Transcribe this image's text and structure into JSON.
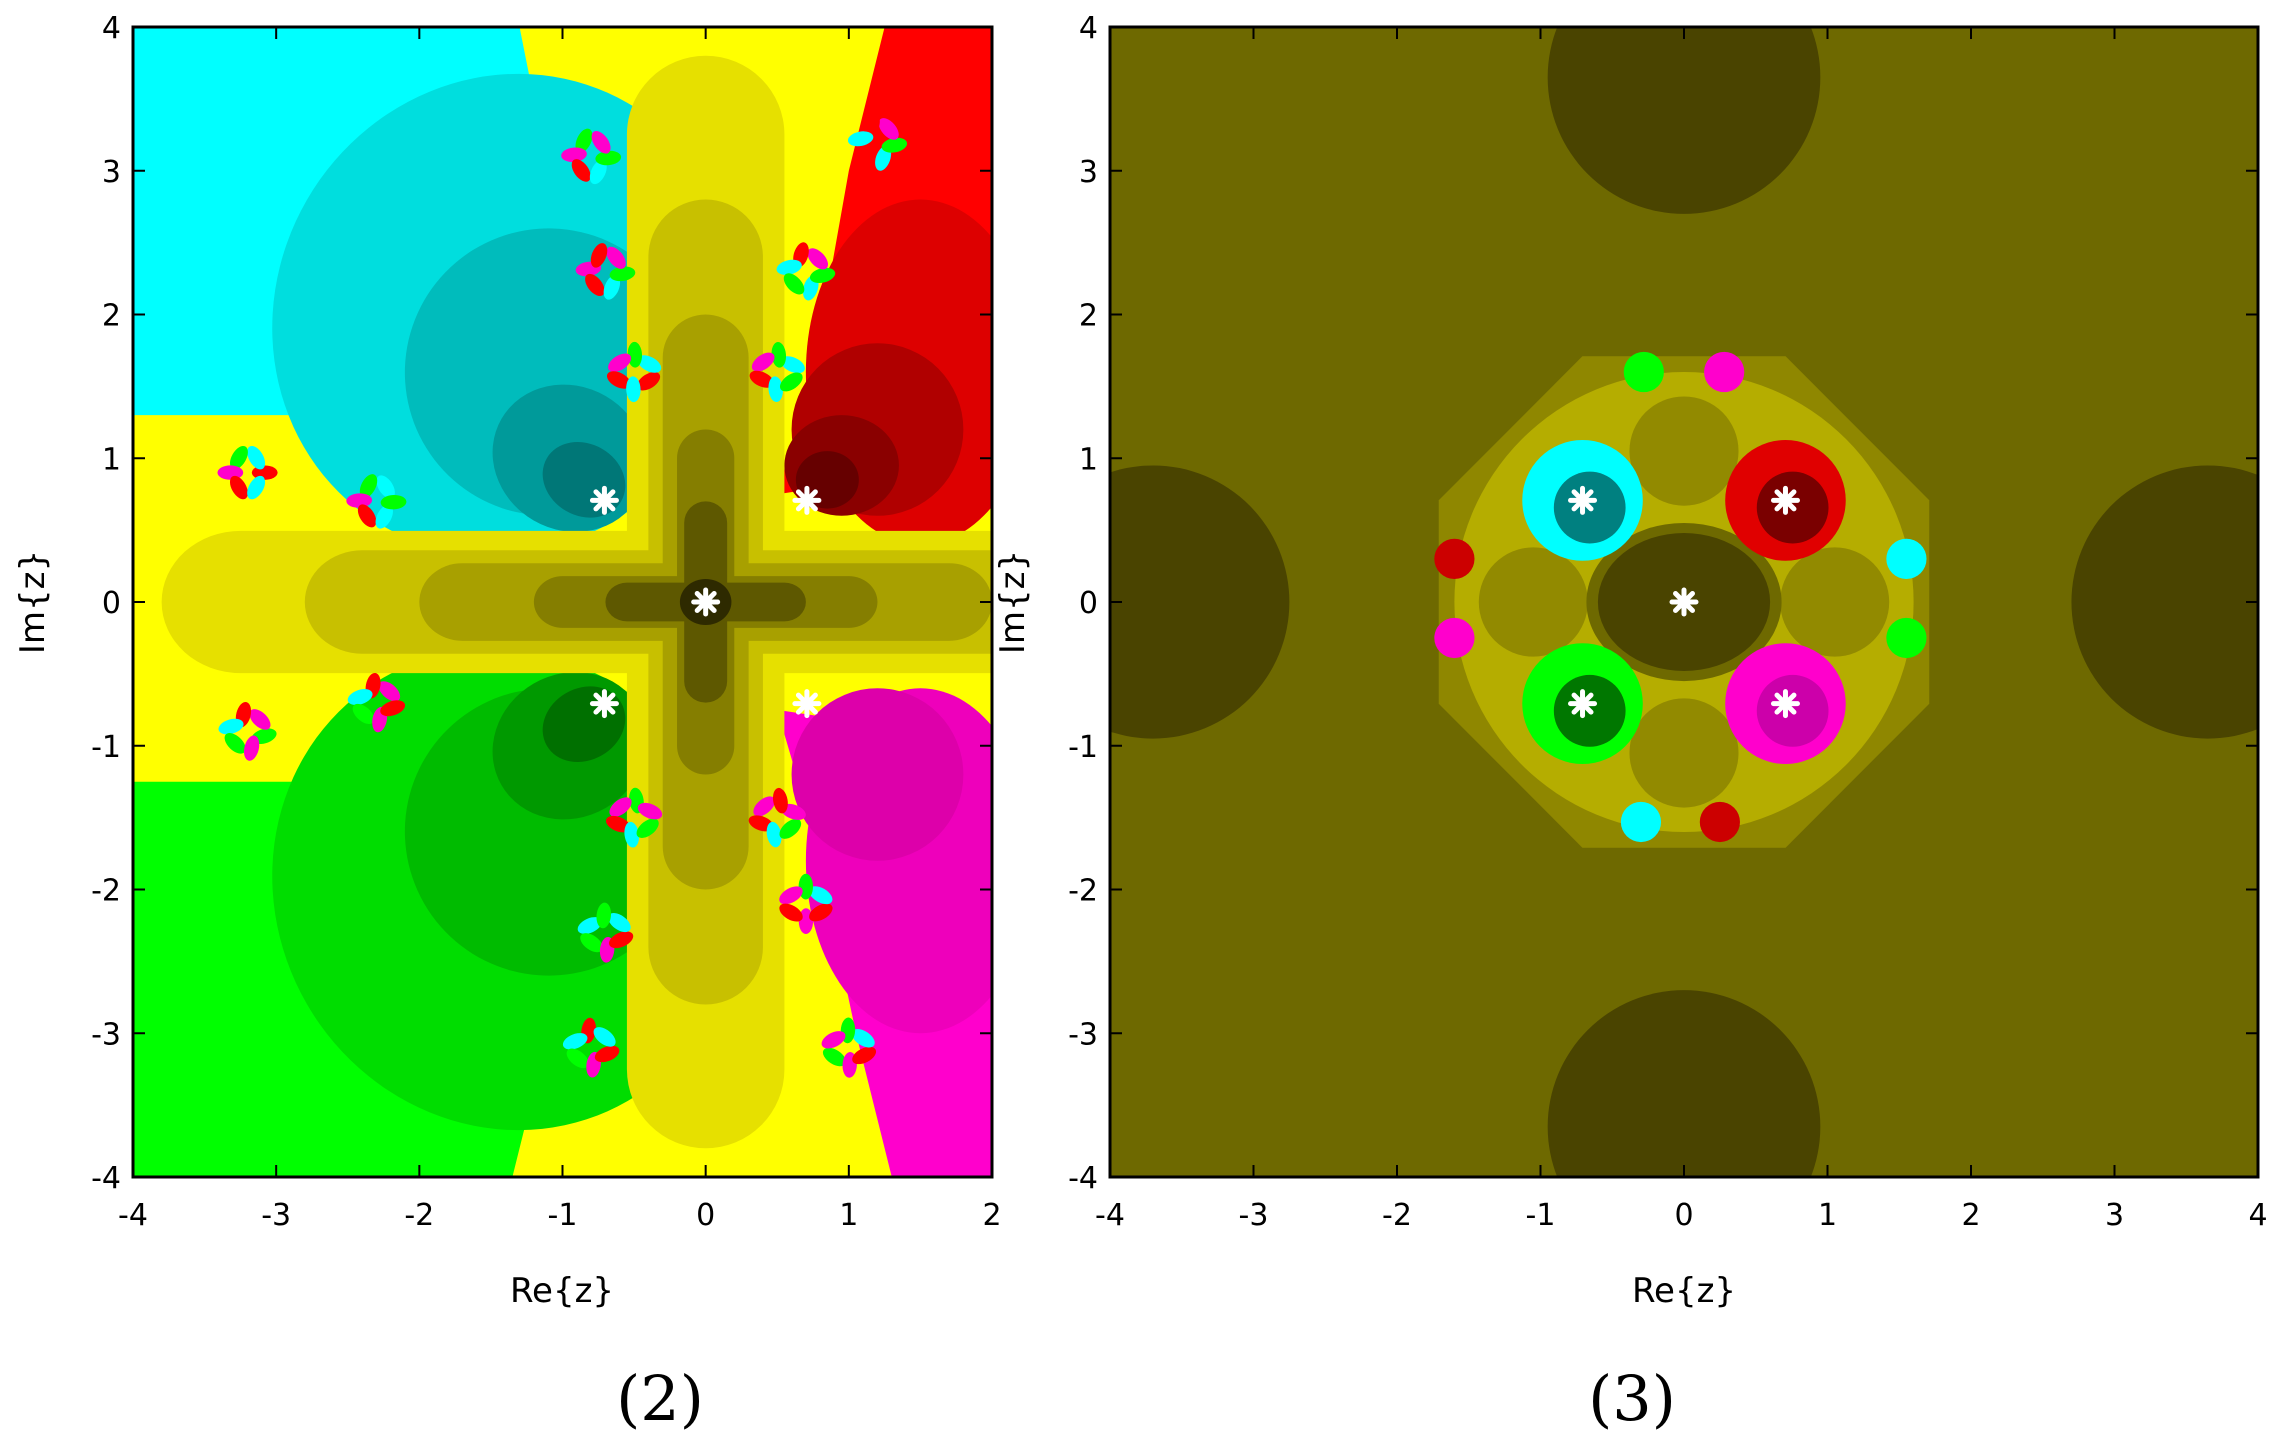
{
  "chart_data": [
    {
      "type": "heatmap",
      "panel_label": "(2)",
      "xlabel": "Re{z}",
      "ylabel": "Im{z}",
      "xlim": [
        -4,
        2
      ],
      "ylim": [
        -4,
        4
      ],
      "xticks": [
        -4,
        -3,
        -2,
        -1,
        0,
        1,
        2
      ],
      "xtick_labels": [
        "-4",
        "-3",
        "-2",
        "-1",
        "0",
        "1",
        "2"
      ],
      "yticks": [
        -4,
        -3,
        -2,
        -1,
        0,
        1,
        2,
        3,
        4
      ],
      "ytick_labels": [
        "-4",
        "-3",
        "-2",
        "-1",
        "0",
        "1",
        "2",
        "3",
        "4"
      ],
      "roots": [
        {
          "x": 0,
          "y": 0,
          "color": "#5a5300"
        },
        {
          "x": 0.7071,
          "y": 0.7071,
          "color": "#ff0000"
        },
        {
          "x": -0.7071,
          "y": 0.7071,
          "color": "#00ffff"
        },
        {
          "x": -0.7071,
          "y": -0.7071,
          "color": "#00ff00"
        },
        {
          "x": 0.7071,
          "y": -0.7071,
          "color": "#ff00cc"
        }
      ],
      "attractor": "yellow",
      "colors": {
        "yellow": "#ffff00",
        "olive": "#6e6900",
        "red": "#ff0000",
        "cyan": "#00ffff",
        "green": "#00ff00",
        "magenta": "#ff00cc"
      }
    },
    {
      "type": "heatmap",
      "panel_label": "(3)",
      "xlabel": "Re{z}",
      "ylabel": "Im{z}",
      "xlim": [
        -4,
        4
      ],
      "ylim": [
        -4,
        4
      ],
      "xticks": [
        -4,
        -3,
        -2,
        -1,
        0,
        1,
        2,
        3,
        4
      ],
      "xtick_labels": [
        "-4",
        "-3",
        "-2",
        "-1",
        "0",
        "1",
        "2",
        "3",
        "4"
      ],
      "yticks": [
        -4,
        -3,
        -2,
        -1,
        0,
        1,
        2,
        3,
        4
      ],
      "ytick_labels": [
        "-4",
        "-3",
        "-2",
        "-1",
        "0",
        "1",
        "2",
        "3",
        "4"
      ],
      "roots": [
        {
          "x": 0,
          "y": 0,
          "color": "#5a5300"
        },
        {
          "x": 0.7071,
          "y": 0.7071,
          "color": "#ff0000"
        },
        {
          "x": -0.7071,
          "y": 0.7071,
          "color": "#00ffff"
        },
        {
          "x": -0.7071,
          "y": -0.7071,
          "color": "#00ff00"
        },
        {
          "x": 0.7071,
          "y": -0.7071,
          "color": "#ff00cc"
        }
      ],
      "attractor": "olive",
      "colors": {
        "yellow": "#ffff00",
        "olive": "#6e6900",
        "red": "#ff0000",
        "cyan": "#00ffff",
        "green": "#00ff00",
        "magenta": "#ff00cc"
      }
    }
  ]
}
